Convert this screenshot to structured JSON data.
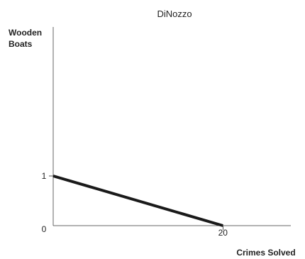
{
  "chart_data": {
    "type": "line",
    "title": "DiNozzo",
    "xlabel": "Crimes Solved",
    "ylabel": "Wooden Boats",
    "xlim": [
      0,
      28
    ],
    "ylim": [
      0,
      4
    ],
    "origin_label": "0",
    "xticks": [
      20
    ],
    "yticks": [
      1
    ],
    "grid": false,
    "series": [
      {
        "x": [
          0,
          20
        ],
        "y": [
          1,
          0
        ]
      }
    ],
    "colors": {
      "series": "#1a1a1a",
      "axes": "#666666",
      "text": "#222222"
    }
  }
}
